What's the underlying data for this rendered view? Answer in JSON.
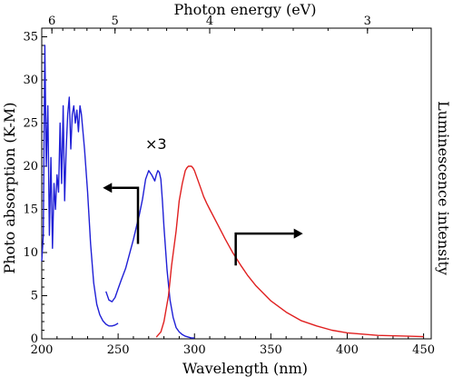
{
  "chart_data": {
    "type": "line",
    "xlabel": "Wavelength (nm)",
    "ylabel": "Photo absorption (K-M)",
    "ylabel_right": "Luminescence intensity",
    "top_axis_label": "Photon energy (eV)",
    "xlim": [
      200,
      455
    ],
    "ylim": [
      0,
      36
    ],
    "x_ticks": [
      200,
      250,
      300,
      350,
      400,
      450
    ],
    "y_ticks": [
      0,
      5,
      10,
      15,
      20,
      25,
      30,
      35
    ],
    "top_ticks": [
      {
        "label": "6",
        "ev": 6
      },
      {
        "label": "5",
        "ev": 5
      },
      {
        "label": "4",
        "ev": 4
      },
      {
        "label": "3",
        "ev": 3
      }
    ],
    "grid": false,
    "annotation": "×3",
    "series": [
      {
        "role": "absorption",
        "color": "#1f1fd6",
        "x": [
          200,
          201,
          202,
          203,
          204,
          205,
          206,
          207,
          208,
          209,
          210,
          211,
          212,
          213,
          214,
          215,
          216,
          217,
          218,
          219,
          220,
          221,
          222,
          223,
          224,
          225,
          226,
          227,
          228,
          230,
          232,
          234,
          236,
          238,
          240,
          242,
          244,
          246,
          248,
          250
        ],
        "y": [
          9,
          12,
          34,
          20,
          27,
          12,
          21,
          10.5,
          18,
          15,
          19,
          17,
          25,
          18,
          27,
          16,
          22,
          26,
          28,
          22,
          26,
          27,
          25,
          26.5,
          24,
          27,
          26,
          24,
          22,
          17,
          11,
          6.5,
          4,
          2.8,
          2.1,
          1.7,
          1.5,
          1.5,
          1.6,
          1.8
        ]
      },
      {
        "role": "absorption ×3",
        "color": "#1f1fd6",
        "x": [
          242,
          244,
          246,
          248,
          250,
          252,
          255,
          258,
          260,
          262,
          264,
          266,
          268,
          270,
          272,
          274,
          275,
          276,
          277,
          278,
          279,
          280,
          282,
          284,
          286,
          288,
          290,
          292,
          294,
          296,
          298,
          300
        ],
        "y": [
          5.5,
          4.5,
          4.3,
          4.8,
          5.8,
          6.8,
          8.2,
          10.2,
          11.5,
          13,
          14.5,
          16.2,
          18.5,
          19.5,
          19,
          18.3,
          19,
          19.5,
          19.3,
          18.5,
          16,
          13,
          8,
          4.5,
          2.5,
          1.3,
          0.8,
          0.5,
          0.3,
          0.2,
          0.1,
          0.1
        ]
      },
      {
        "role": "luminescence",
        "color": "#e02020",
        "x": [
          275,
          278,
          280,
          283,
          285,
          288,
          290,
          292,
          294,
          295,
          296,
          297,
          298,
          299,
          300,
          302,
          304,
          306,
          308,
          310,
          315,
          320,
          325,
          330,
          335,
          340,
          350,
          360,
          370,
          380,
          390,
          400,
          420,
          440,
          450
        ],
        "y": [
          0.2,
          0.8,
          2,
          5,
          8.5,
          12.5,
          16,
          18,
          19.5,
          19.8,
          20,
          20,
          20,
          19.8,
          19.5,
          18.5,
          17.5,
          16.5,
          15.7,
          15,
          13.3,
          11.6,
          10,
          8.6,
          7.3,
          6.2,
          4.4,
          3.1,
          2.1,
          1.5,
          1.0,
          0.7,
          0.4,
          0.3,
          0.25
        ]
      }
    ],
    "arrows": [
      {
        "direction": "left",
        "x_anchor": 263,
        "y_low": 11,
        "y_high": 17.5,
        "x_tip": 240
      },
      {
        "direction": "right",
        "x_anchor": 327,
        "y_low": 8.5,
        "y_high": 12.2,
        "x_tip": 371
      }
    ]
  }
}
